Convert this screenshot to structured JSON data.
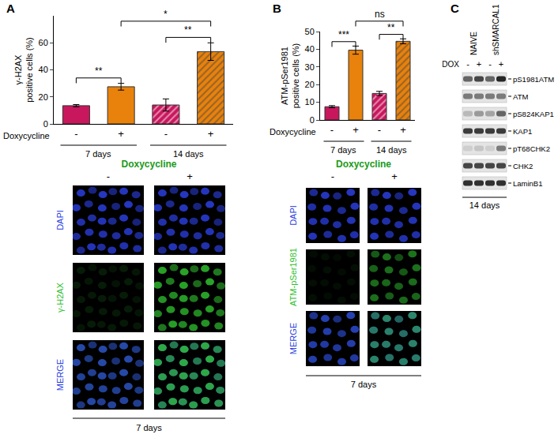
{
  "chart_data": [
    {
      "label": "A",
      "type": "bar",
      "y_label": [
        "γ-H2AX",
        "positive cells (%)"
      ],
      "x_label": "Doxycycline",
      "categories": [
        "-",
        "+",
        "-",
        "+"
      ],
      "groups": [
        "7 days",
        "7 days",
        "14 days",
        "14 days"
      ],
      "values": [
        13.5,
        27.5,
        14,
        53.5
      ],
      "errors": [
        0.8,
        2.5,
        4.5,
        6.5
      ],
      "colors": [
        "#c8175d",
        "#e8820c",
        "#c8175d",
        "#e8820c"
      ],
      "ylim": [
        0,
        80
      ],
      "yticks": [
        0,
        20,
        40,
        60
      ],
      "grid": false,
      "significance": [
        {
          "from": 0,
          "to": 1,
          "text": "**"
        },
        {
          "from": 2,
          "to": 3,
          "text": "**"
        },
        {
          "from": 1,
          "to": 3,
          "text": "*"
        }
      ]
    },
    {
      "label": "B",
      "type": "bar",
      "y_label": [
        "ATM-pSer1981",
        "positive cells (%)"
      ],
      "x_label": "Doxycycline",
      "categories": [
        "-",
        "+",
        "-",
        "+"
      ],
      "groups": [
        "7 days",
        "7 days",
        "14 days",
        "14 days"
      ],
      "values": [
        7.5,
        39.5,
        15,
        44.5
      ],
      "errors": [
        0.6,
        2.3,
        1.2,
        1.4
      ],
      "colors": [
        "#c8175d",
        "#e8820c",
        "#c8175d",
        "#e8820c"
      ],
      "ylim": [
        0,
        50
      ],
      "yticks": [
        0,
        10,
        20,
        30,
        40,
        50
      ],
      "grid": false,
      "significance": [
        {
          "from": 0,
          "to": 1,
          "text": "***"
        },
        {
          "from": 2,
          "to": 3,
          "text": "**"
        },
        {
          "from": 1,
          "to": 3,
          "text": "ns"
        }
      ]
    }
  ],
  "micrographs": [
    {
      "panel": "A",
      "title": "Doxycycline",
      "columns": [
        "-",
        "+"
      ],
      "rows": [
        {
          "label": "DAPI",
          "color": "#2b3fe0",
          "intensity": [
            0.85,
            0.85
          ]
        },
        {
          "label": "γ-H2AX",
          "color": "#2fbf2f",
          "intensity": [
            0.15,
            0.85
          ]
        },
        {
          "label": "MERGE",
          "color": "#2b3fe0"
        }
      ],
      "caption": "7 days"
    },
    {
      "panel": "B",
      "title": "Doxycycline",
      "columns": [
        "-",
        "+"
      ],
      "rows": [
        {
          "label": "DAPI",
          "color": "#2b3fe0",
          "intensity": [
            0.85,
            0.85
          ]
        },
        {
          "label": "ATM-pSer1981",
          "color": "#2fbf2f",
          "intensity": [
            0.08,
            0.6
          ]
        },
        {
          "label": "MERGE",
          "color": "#2b3fe0"
        }
      ],
      "caption": "7 days"
    }
  ],
  "blot": {
    "label": "C",
    "dox_label": "DOX",
    "groups": [
      "NAIVE",
      "shSMARCAL1"
    ],
    "lanes": [
      "-",
      "+",
      "-",
      "+"
    ],
    "rows": [
      {
        "label": "pS1981ATM",
        "intensity": [
          0.6,
          0.75,
          0.6,
          0.9
        ]
      },
      {
        "label": "ATM",
        "intensity": [
          0.5,
          0.5,
          0.5,
          0.5
        ]
      },
      {
        "label": "pS824KAP1",
        "intensity": [
          0.2,
          0.35,
          0.3,
          0.6
        ]
      },
      {
        "label": "KAP1",
        "intensity": [
          0.8,
          0.8,
          0.8,
          0.8
        ]
      },
      {
        "label": "pT68CHK2",
        "intensity": [
          0.1,
          0.15,
          0.1,
          0.5
        ]
      },
      {
        "label": "CHK2",
        "intensity": [
          0.75,
          0.75,
          0.75,
          0.75
        ]
      },
      {
        "label": "LaminB1",
        "intensity": [
          0.85,
          0.85,
          0.85,
          0.85
        ]
      }
    ],
    "caption": "14 days"
  }
}
